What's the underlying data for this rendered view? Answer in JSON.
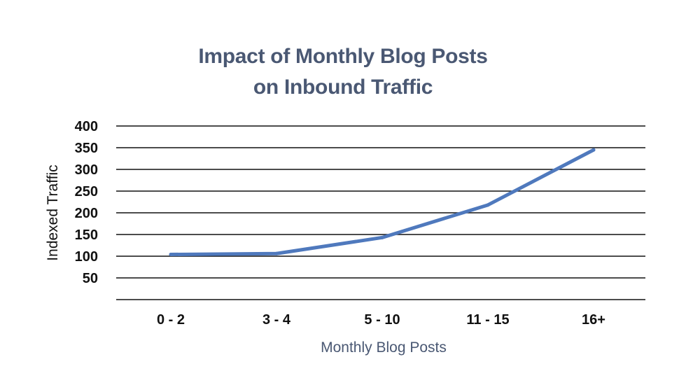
{
  "chart_data": {
    "type": "line",
    "title_line1": "Impact of Monthly Blog Posts",
    "title_line2": "on Inbound Traffic",
    "xlabel": "Monthly Blog Posts",
    "ylabel": "Indexed Traffic",
    "categories": [
      "0 - 2",
      "3 - 4",
      "5 - 10",
      "11 - 15",
      "16+"
    ],
    "series": [
      {
        "values": [
          104,
          106,
          143,
          218,
          345
        ]
      }
    ],
    "ylim": [
      0,
      400
    ],
    "yticks": [
      50,
      100,
      150,
      200,
      250,
      300,
      350,
      400
    ],
    "grid": true,
    "line_color": "#4f79bd",
    "grid_color": "#111111",
    "title_color": "#4a5873"
  }
}
